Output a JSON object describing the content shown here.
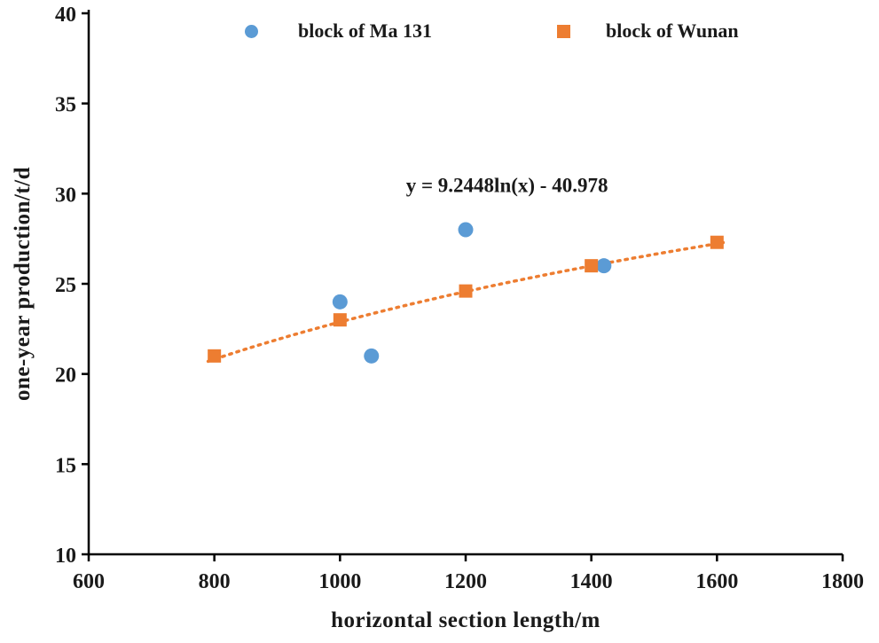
{
  "chart_data": {
    "type": "scatter",
    "title": "",
    "xlabel": "horizontal section length/m",
    "ylabel": "one-year production/t/d",
    "xlim": [
      600,
      1800
    ],
    "ylim": [
      10,
      40
    ],
    "xticks": [
      600,
      800,
      1000,
      1200,
      1400,
      1600,
      1800
    ],
    "yticks": [
      10,
      15,
      20,
      25,
      30,
      35,
      40
    ],
    "grid": false,
    "legend_position": "top",
    "series": [
      {
        "name": "block of Ma 131",
        "marker": "circle",
        "color": "#5B9BD5",
        "points": [
          [
            1000,
            24
          ],
          [
            1050,
            21
          ],
          [
            1200,
            28
          ],
          [
            1420,
            26
          ]
        ]
      },
      {
        "name": "block of Wunan",
        "marker": "square",
        "color": "#ED7D31",
        "points": [
          [
            800,
            21
          ],
          [
            1000,
            23
          ],
          [
            1200,
            24.6
          ],
          [
            1400,
            26
          ],
          [
            1600,
            27.3
          ]
        ]
      }
    ],
    "trendline": {
      "type": "logarithmic",
      "equation": "y = 9.2448ln(x) - 40.978",
      "a": 9.2448,
      "b": -40.978,
      "color": "#ED7D31",
      "style": "dotted",
      "x_range": [
        790,
        1615
      ]
    },
    "annotation": {
      "text": "y = 9.2448ln(x) - 40.978",
      "x": 1105,
      "y": 30.1
    },
    "axis_color": "#000000",
    "text_color": "#1a1a1a"
  }
}
